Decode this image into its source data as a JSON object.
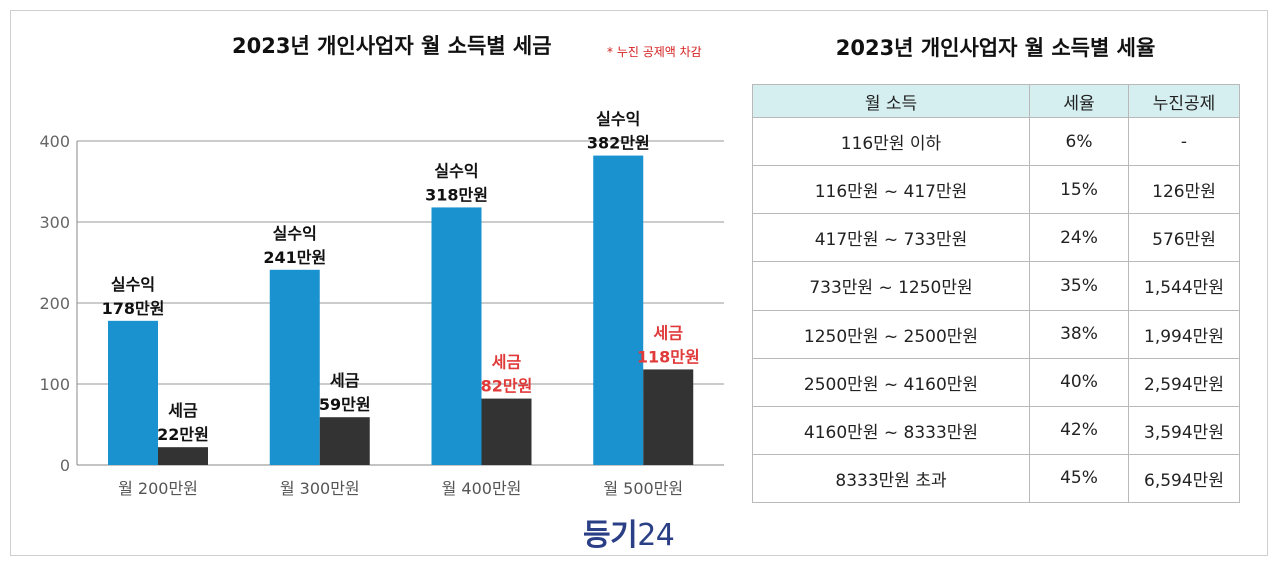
{
  "chart_data": {
    "type": "bar",
    "title": "2023년 개인사업자 월 소득별 세금",
    "note": "* 누진 공제액 차감",
    "categories": [
      "월 200만원",
      "월 300만원",
      "월 400만원",
      "월 500만원"
    ],
    "ylim": [
      0,
      400
    ],
    "yticks": [
      0,
      100,
      200,
      300,
      400
    ],
    "grid": true,
    "series": [
      {
        "name": "실수익",
        "values": [
          178,
          241,
          318,
          382
        ],
        "color": "#1a92d0",
        "labels": [
          "실수익\n178만원",
          "실수익\n241만원",
          "실수익\n318만원",
          "실수익\n382만원"
        ],
        "label_colors": [
          "#111111",
          "#111111",
          "#111111",
          "#111111"
        ]
      },
      {
        "name": "세금",
        "values": [
          22,
          59,
          82,
          118
        ],
        "color": "#333333",
        "labels": [
          "세금\n22만원",
          "세금\n59만원",
          "세금\n82만원",
          "세금\n118만원"
        ],
        "label_colors": [
          "#111111",
          "#111111",
          "#e03a3a",
          "#e03a3a"
        ]
      }
    ]
  },
  "table": {
    "title": "2023년 개인사업자 월 소득별 세율",
    "headers": [
      "월 소득",
      "세율",
      "누진공제"
    ],
    "header_bg": "#d5eff1",
    "rows": [
      [
        "116만원 이하",
        "6%",
        "-"
      ],
      [
        "116만원 ~ 417만원",
        "15%",
        "126만원"
      ],
      [
        "417만원 ~ 733만원",
        "24%",
        "576만원"
      ],
      [
        "733만원 ~ 1250만원",
        "35%",
        "1,544만원"
      ],
      [
        "1250만원 ~ 2500만원",
        "38%",
        "1,994만원"
      ],
      [
        "2500만원 ~ 4160만원",
        "40%",
        "2,594만원"
      ],
      [
        "4160만원 ~ 8333만원",
        "42%",
        "3,594만원"
      ],
      [
        "8333만원 초과",
        "45%",
        "6,594만원"
      ]
    ]
  },
  "logo": {
    "bold": "등기",
    "light": "24",
    "color": "#2a3f86"
  }
}
